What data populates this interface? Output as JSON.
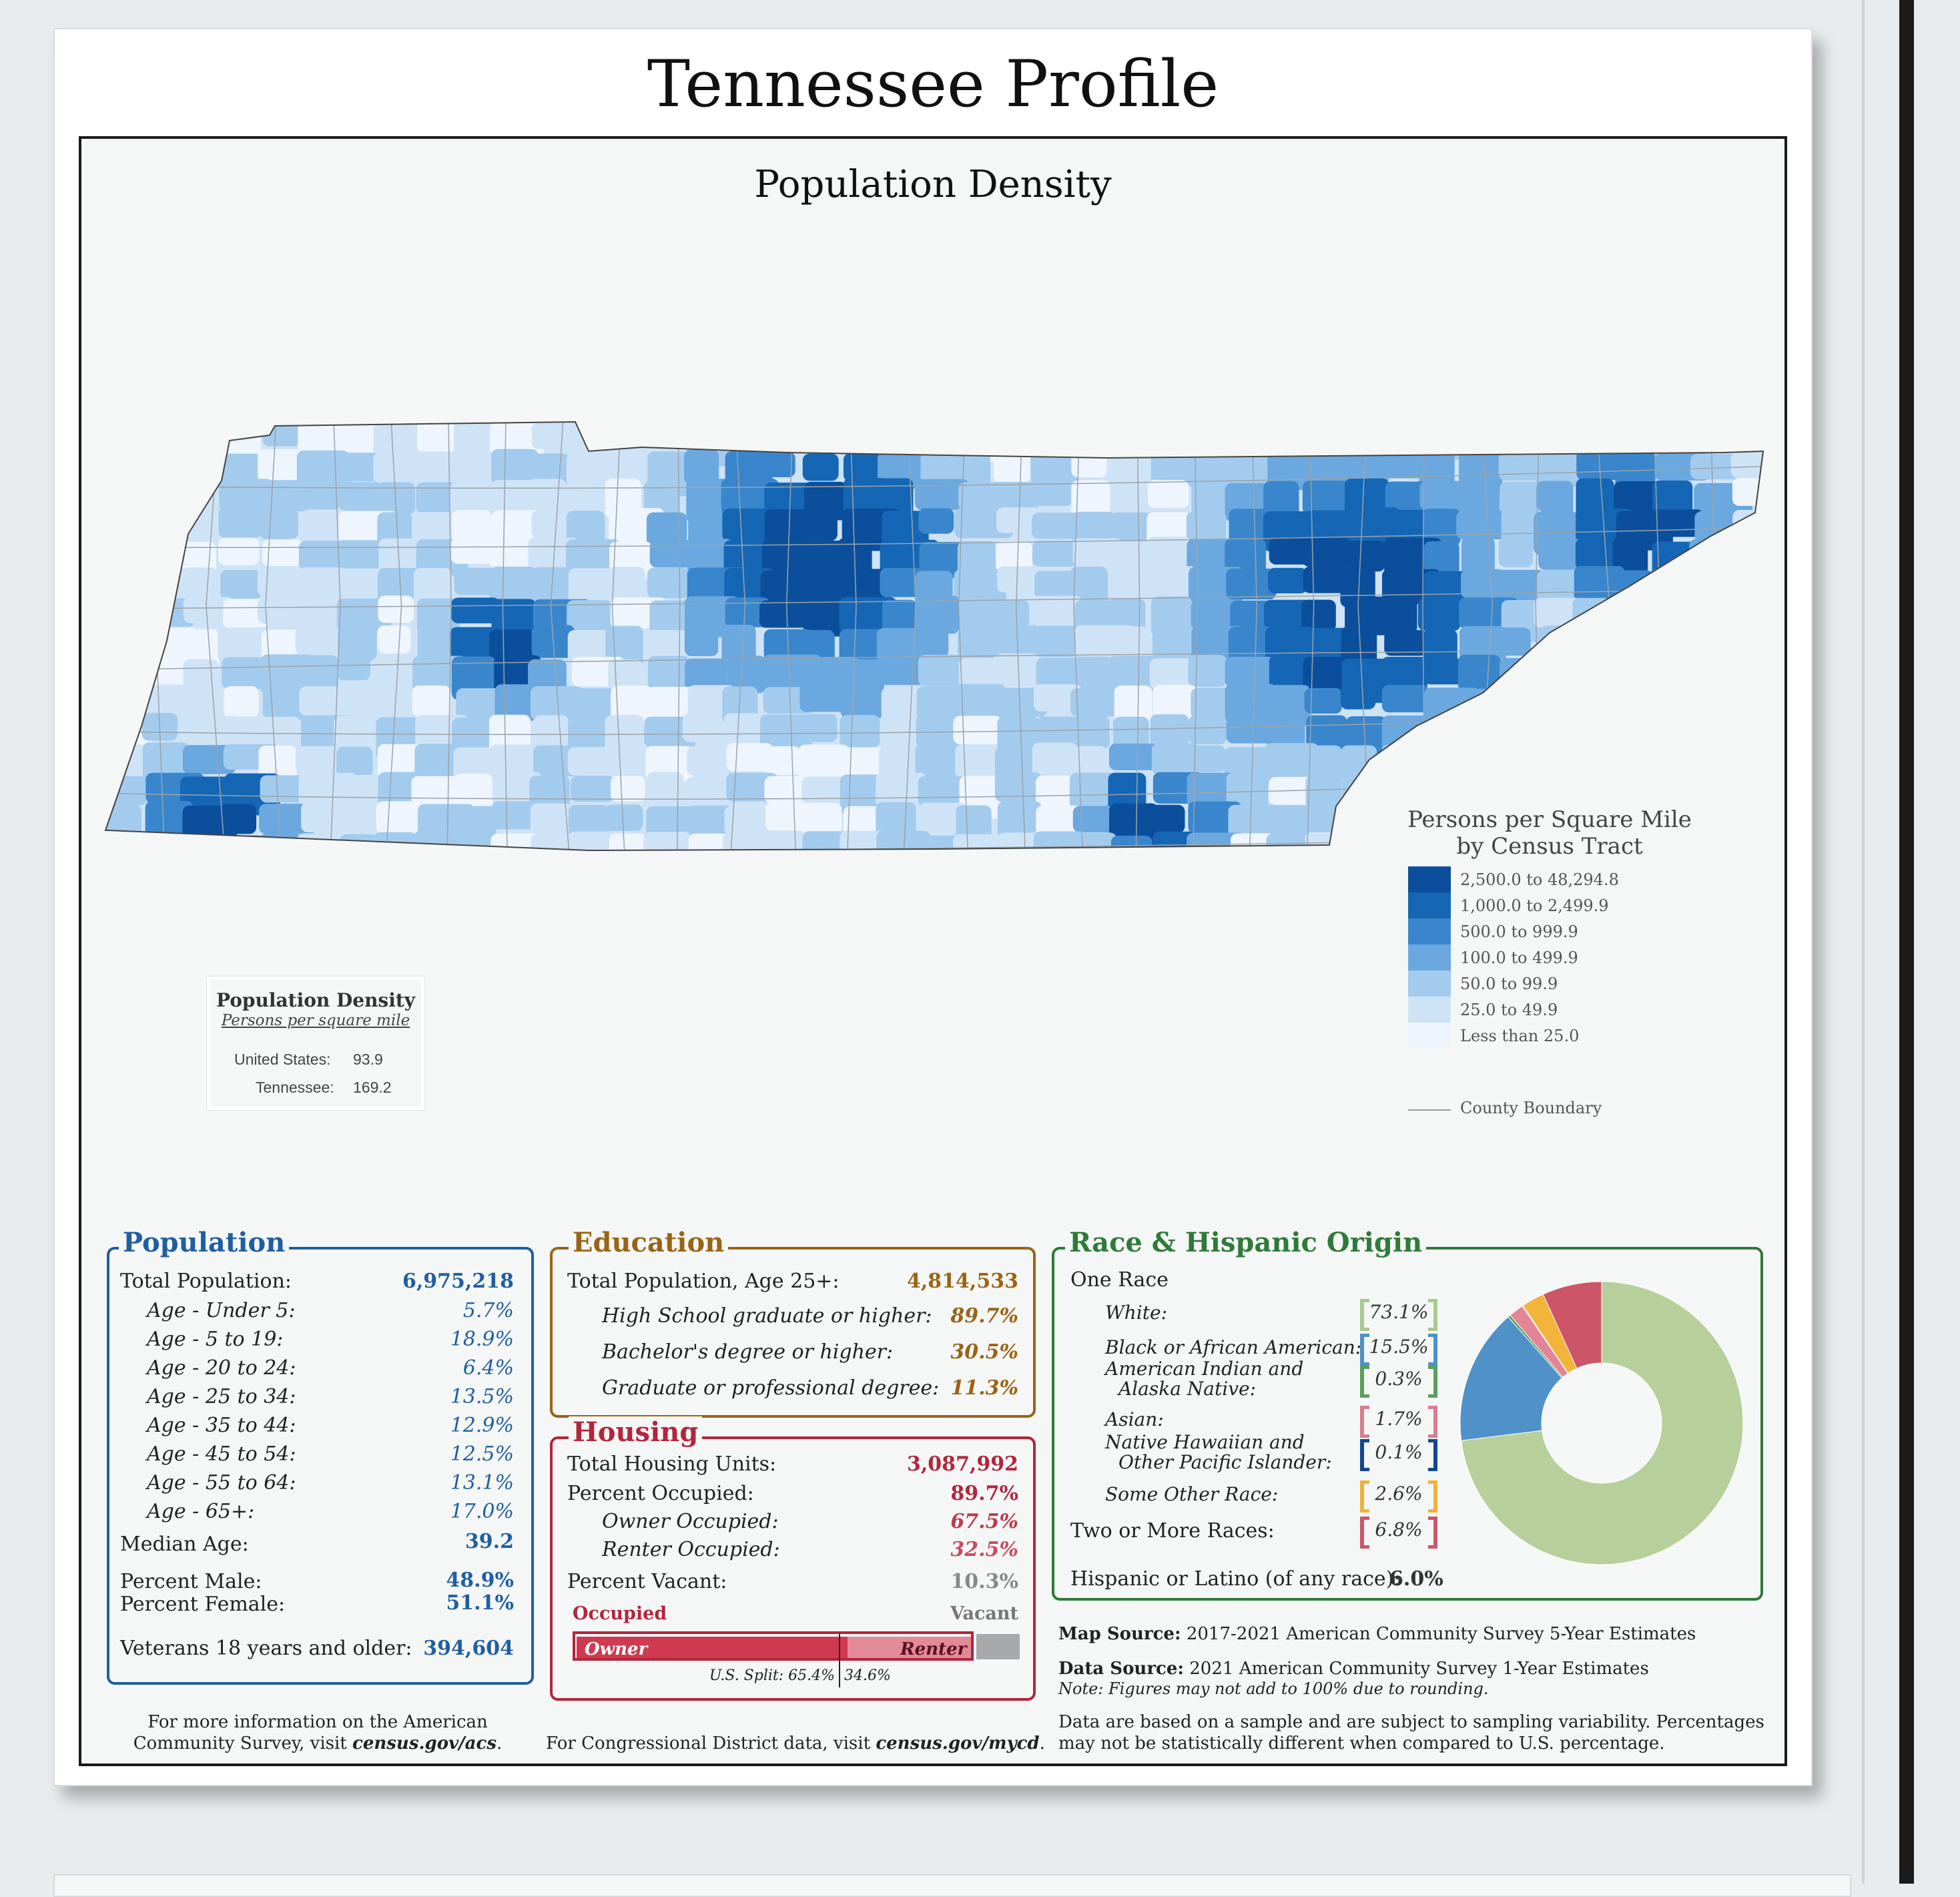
{
  "title": "Tennessee Profile",
  "map": {
    "title": "Population Density",
    "legend": {
      "title_line1": "Persons per Square Mile",
      "title_line2": "by Census Tract",
      "classes": [
        {
          "label": "2,500.0 to 48,294.8",
          "color": "#0b4f9c"
        },
        {
          "label": "1,000.0 to 2,499.9",
          "color": "#1567b6"
        },
        {
          "label": "500.0 to 999.9",
          "color": "#3a86cc"
        },
        {
          "label": "100.0 to 499.9",
          "color": "#6aa8df"
        },
        {
          "label": "50.0 to 99.9",
          "color": "#a3cbee"
        },
        {
          "label": "25.0 to 49.9",
          "color": "#cfe3f6"
        },
        {
          "label": "Less than 25.0",
          "color": "#eef5fc"
        }
      ],
      "boundary_label": "County Boundary"
    },
    "density_box": {
      "title": "Population Density",
      "subtitle": "Persons per square mile",
      "us_label": "United States:",
      "us_value": "93.9",
      "tn_label": "Tennessee:",
      "tn_value": "169.2"
    }
  },
  "population": {
    "title": "Population",
    "color": "#1f5fa0",
    "total_label": "Total Population:",
    "total_value": "6,975,218",
    "ages": [
      {
        "label": "Age - Under 5:",
        "value": "5.7%"
      },
      {
        "label": "Age - 5 to 19:",
        "value": "18.9%"
      },
      {
        "label": "Age - 20 to 24:",
        "value": "6.4%"
      },
      {
        "label": "Age - 25 to 34:",
        "value": "13.5%"
      },
      {
        "label": "Age - 35 to 44:",
        "value": "12.9%"
      },
      {
        "label": "Age - 45 to 54:",
        "value": "12.5%"
      },
      {
        "label": "Age - 55 to 64:",
        "value": "13.1%"
      },
      {
        "label": "Age - 65+:",
        "value": "17.0%"
      }
    ],
    "median_label": "Median Age:",
    "median_value": "39.2",
    "male_label": "Percent Male:",
    "male_value": "48.9%",
    "female_label": "Percent Female:",
    "female_value": "51.1%",
    "veterans_label": "Veterans 18 years and older:",
    "veterans_value": "394,604"
  },
  "education": {
    "title": "Education",
    "color": "#9a6414",
    "total_label": "Total Population, Age 25+:",
    "total_value": "4,814,533",
    "rows": [
      {
        "label": "High School  graduate or higher:",
        "value": "89.7%"
      },
      {
        "label": "Bachelor's degree or higher:",
        "value": "30.5%"
      },
      {
        "label": "Graduate or professional degree:",
        "value": "11.3%"
      }
    ]
  },
  "housing": {
    "title": "Housing",
    "color": "#b3253b",
    "units_label": "Total Housing Units:",
    "units_value": "3,087,992",
    "occupied_label": "Percent Occupied:",
    "occupied_value": "89.7%",
    "owner_label": "Owner Occupied:",
    "owner_value": "67.5%",
    "renter_label": "Renter Occupied:",
    "renter_value": "32.5%",
    "vacant_label": "Percent Vacant:",
    "vacant_value": "10.3%",
    "bar": {
      "occupied_caption": "Occupied",
      "vacant_caption": "Vacant",
      "owner_text": "Owner",
      "renter_text": "Renter",
      "occupied_fraction": 0.897,
      "owner_fraction_of_occupied": 0.675,
      "us_split_text": "U.S. Split: 65.4%",
      "us_split_right": "34.6%",
      "us_owner_fraction": 0.654
    }
  },
  "race": {
    "title": "Race & Hispanic Origin",
    "color": "#2f7a38",
    "one_race_label": "One Race",
    "items": [
      {
        "label": "White:",
        "value": "73.1%",
        "color": "#b7d09b",
        "bracket": "#a9c98e"
      },
      {
        "label": "Black or African American:",
        "value": "15.5%",
        "color": "#4f91c8",
        "bracket": "#4f91c8"
      },
      {
        "label_line1": "American Indian and",
        "label_line2": "Alaska Native:",
        "value": "0.3%",
        "color": "#4f9d58",
        "bracket": "#5a9e5e"
      },
      {
        "label": "Asian:",
        "value": "1.7%",
        "color": "#e38597",
        "bracket": "#d97c8d"
      },
      {
        "label_line1": "Native Hawaiian and",
        "label_line2": "Other Pacific Islander:",
        "value": "0.1%",
        "color": "#13468f",
        "bracket": "#13468f"
      },
      {
        "label": "Some Other Race:",
        "value": "2.6%",
        "color": "#f2b43a",
        "bracket": "#efb23a"
      },
      {
        "label": "Two or More Races:",
        "value": "6.8%",
        "color": "#cc5668",
        "bracket": "#cc5668"
      }
    ],
    "hispanic_label": "Hispanic or Latino (of any race):",
    "hispanic_value": "6.0%",
    "donut_slices": [
      {
        "name": "White",
        "value": 73.1,
        "color": "#b7d09b"
      },
      {
        "name": "Black or African American",
        "value": 15.5,
        "color": "#4f91c8"
      },
      {
        "name": "American Indian and Alaska Native",
        "value": 0.3,
        "color": "#4f9d58"
      },
      {
        "name": "Asian",
        "value": 1.7,
        "color": "#e38597"
      },
      {
        "name": "Native Hawaiian and Other Pacific Islander",
        "value": 0.1,
        "color": "#13468f"
      },
      {
        "name": "Some Other Race",
        "value": 2.6,
        "color": "#f2b43a"
      },
      {
        "name": "Two or More Races",
        "value": 6.8,
        "color": "#cc5668"
      }
    ]
  },
  "sources": {
    "map_source_label": "Map Source:",
    "map_source_text": "2017-2021 American Community Survey 5-Year Estimates",
    "data_source_label": "Data Source:",
    "data_source_text": "2021 American Community Survey 1-Year Estimates",
    "note": "Note: Figures may not add to 100% due to rounding.",
    "disclaimer_line1": "Data are based on a sample and are subject to sampling variability. Percentages",
    "disclaimer_line2": "may not be statistically different when compared to U.S. percentage."
  },
  "footer": {
    "acs_line1": "For more information on the American",
    "acs_line2_prefix": "Community Survey, visit ",
    "acs_link": "census.gov/acs",
    "acs_suffix": ".",
    "cd_prefix": "For Congressional District data, visit ",
    "cd_link": "census.gov/mycd",
    "cd_suffix": "."
  }
}
